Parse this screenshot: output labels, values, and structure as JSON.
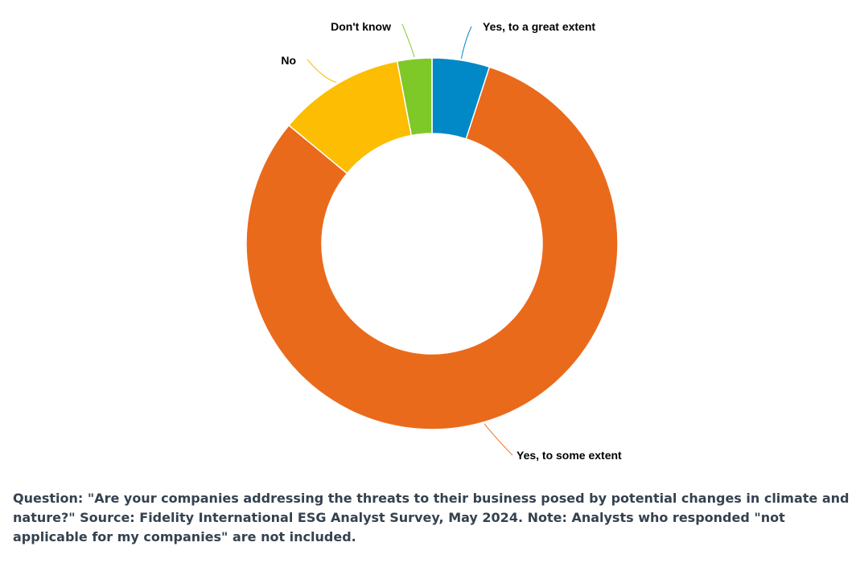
{
  "chart_data": {
    "type": "pie",
    "variant": "donut",
    "categories": [
      "Yes, to a great extent",
      "Yes, to some extent",
      "No",
      "Don't know"
    ],
    "values": [
      5,
      81,
      11,
      3
    ],
    "colors": [
      "#0088c7",
      "#ea6a1b",
      "#fcbd02",
      "#7ec827"
    ],
    "legend": "none",
    "title": ""
  },
  "caption": "Question: \"Are your companies addressing the threats to their business posed by potential changes in climate and nature?\" Source: Fidelity International ESG Analyst Survey, May 2024. Note: Analysts who responded \"not applicable for my companies\" are not included."
}
